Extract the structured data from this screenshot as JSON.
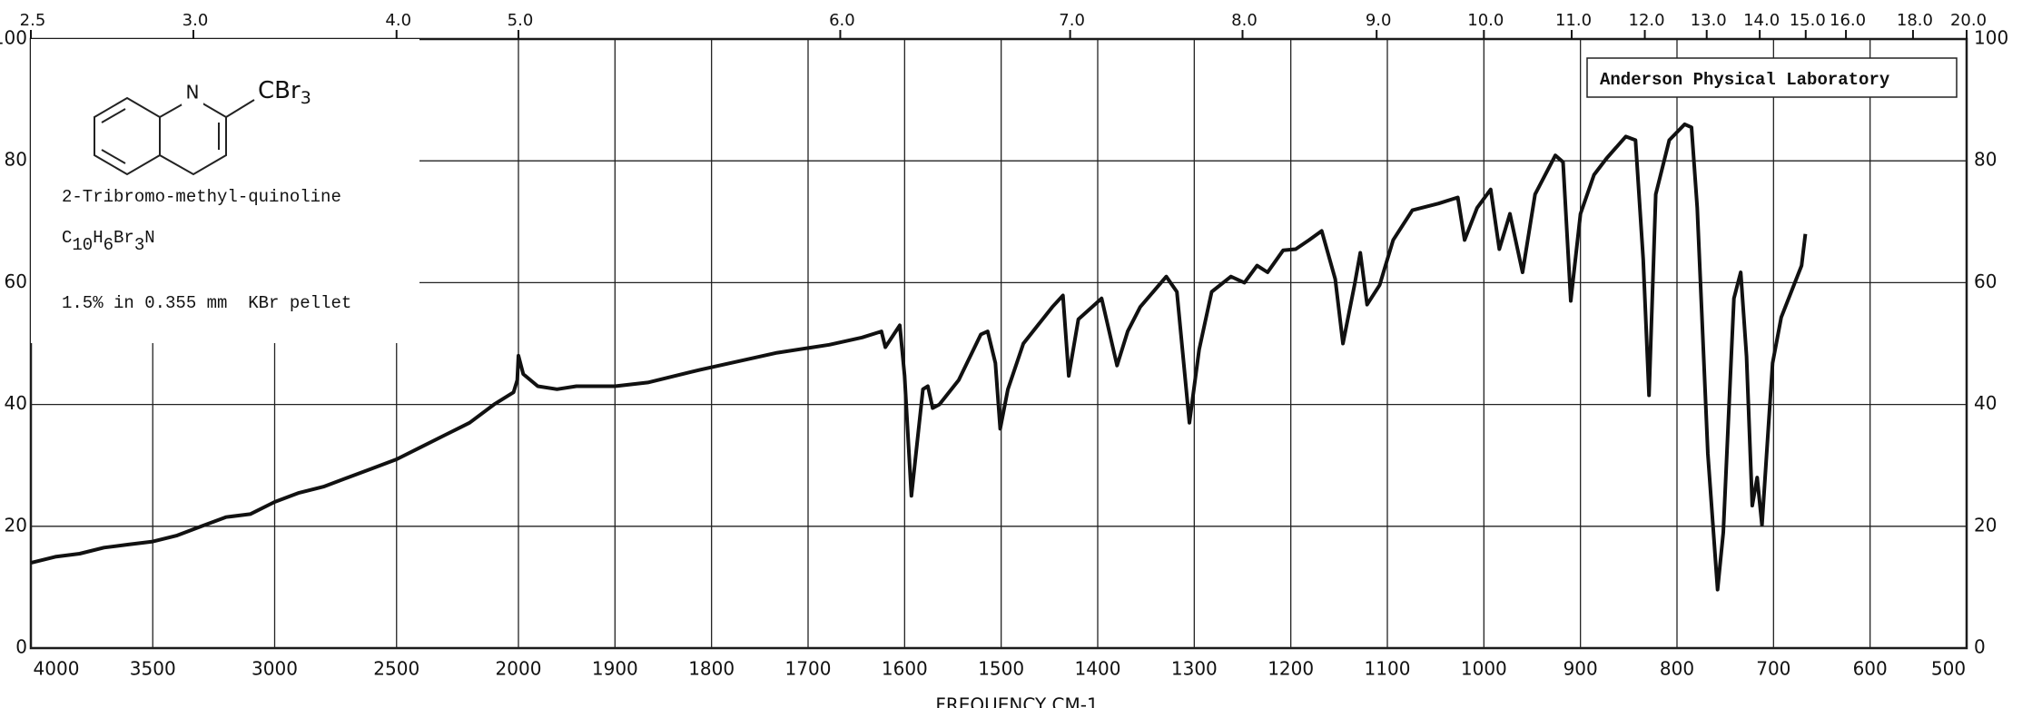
{
  "chart_data": {
    "type": "line",
    "xlabel": "FREQUENCY  CM-1",
    "compound": "2-Tribromo-methyl-quinoline",
    "formula_parts": [
      "C",
      "10",
      "H",
      "6",
      "Br",
      "3",
      "N"
    ],
    "structure": {
      "atom": "N",
      "group": [
        "CBr",
        "3"
      ]
    },
    "sample": "1.5% in 0.355 mm  KBr pellet",
    "lab": "Anderson Physical Laboratory",
    "color": "#111111",
    "grid": true,
    "xlim": [
      4000,
      500
    ],
    "xbreak": 2000,
    "ylim": [
      0,
      100
    ],
    "yticks": [
      0,
      20,
      40,
      60,
      80,
      100
    ],
    "xticks": [
      4000,
      3500,
      3000,
      2500,
      2000,
      1900,
      1800,
      1700,
      1600,
      1500,
      1400,
      1300,
      1200,
      1100,
      1000,
      900,
      800,
      700,
      600,
      500
    ],
    "x2ticks": [
      {
        "value": 2.5,
        "label": "2.5"
      },
      {
        "value": 3,
        "label": "3.0"
      },
      {
        "value": 4,
        "label": "4.0"
      },
      {
        "value": 5,
        "label": "5.0"
      },
      {
        "value": 6,
        "label": "6.0"
      },
      {
        "value": 7,
        "label": "7.0"
      },
      {
        "value": 8,
        "label": "8.0"
      },
      {
        "value": 9,
        "label": "9.0"
      },
      {
        "value": 10,
        "label": "10.0"
      },
      {
        "value": 11,
        "label": "11.0"
      },
      {
        "value": 12,
        "label": "12.0"
      },
      {
        "value": 13,
        "label": "13.0"
      },
      {
        "value": 14,
        "label": "14.0"
      },
      {
        "value": 15,
        "label": "15.0"
      },
      {
        "value": 16,
        "label": "16.0"
      },
      {
        "value": 18,
        "label": "18.0"
      },
      {
        "value": 20,
        "label": "20.0"
      }
    ],
    "x": [
      4000,
      3900,
      3800,
      3700,
      3600,
      3500,
      3400,
      3300,
      3200,
      3100,
      3000,
      2900,
      2800,
      2700,
      2600,
      2500,
      2400,
      2300,
      2200,
      2100,
      2020,
      2005,
      2000,
      1995,
      1980,
      1960,
      1940,
      1900,
      1866,
      1812,
      1732,
      1678,
      1644,
      1624,
      1620,
      1605,
      1600,
      1593,
      1581,
      1576,
      1571,
      1564,
      1544,
      1521,
      1514,
      1506,
      1501,
      1493,
      1477,
      1447,
      1436,
      1430,
      1420,
      1396,
      1380,
      1369,
      1356,
      1329,
      1318,
      1305,
      1295,
      1282,
      1262,
      1248,
      1235,
      1224,
      1208,
      1195,
      1181,
      1168,
      1154,
      1146,
      1134,
      1128,
      1121,
      1108,
      1094,
      1074,
      1047,
      1027,
      1020,
      1007,
      993,
      984,
      973,
      960,
      947,
      926,
      918,
      910,
      900,
      886,
      873,
      853,
      843,
      835,
      829,
      822,
      808,
      792,
      785,
      779,
      768,
      758,
      752,
      741,
      734,
      728,
      722,
      717,
      712,
      701,
      692,
      671,
      667
    ],
    "values": [
      14,
      15,
      15.5,
      16.5,
      17,
      17.5,
      18.5,
      20,
      21.5,
      22,
      24,
      25.5,
      26.5,
      28,
      29.5,
      31,
      33,
      35,
      37,
      40,
      42,
      44,
      48,
      45,
      43,
      42.5,
      43,
      43,
      43.6,
      45.7,
      48.5,
      49.8,
      51,
      52,
      49.4,
      53,
      44.7,
      25,
      42.5,
      43,
      39.4,
      40,
      44,
      51.5,
      52,
      46.8,
      36,
      42.5,
      50,
      56,
      57.9,
      44.7,
      54,
      57.4,
      46.4,
      52,
      56,
      61,
      58.5,
      37,
      49,
      58.5,
      61,
      60,
      62.8,
      61.7,
      65.3,
      65.5,
      67,
      68.5,
      60.6,
      50,
      59.6,
      64.9,
      56.4,
      59.6,
      67,
      71.9,
      73,
      74,
      67,
      72.3,
      75.3,
      65.5,
      71.3,
      61.7,
      74.5,
      80.9,
      79.8,
      57,
      71.3,
      77.7,
      80.4,
      84,
      83.4,
      63.8,
      41.5,
      74.5,
      83.4,
      86,
      85.5,
      72.3,
      31.9,
      9.6,
      19,
      57.4,
      61.7,
      47.9,
      23.4,
      28,
      20.2,
      46.8,
      54.3,
      62.8,
      68
    ]
  }
}
